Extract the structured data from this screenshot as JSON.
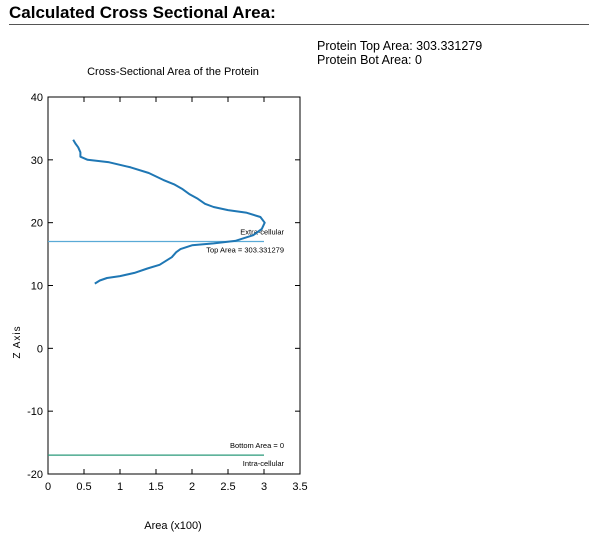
{
  "page": {
    "heading": "Calculated Cross Sectional Area:",
    "stats": {
      "top_area": "Protein Top Area: 303.331279",
      "bot_area": "Protein Bot Area: 0"
    }
  },
  "chart_data": {
    "type": "line",
    "title": "Cross-Sectional Area of the Protein",
    "xlabel": "Area (x100)",
    "ylabel": "Z Axis",
    "xlim": [
      0,
      3.5
    ],
    "ylim": [
      -20,
      40
    ],
    "xticks": [
      0,
      0.5,
      1,
      1.5,
      2,
      2.5,
      3,
      3.5
    ],
    "xtick_labels": [
      "0",
      "0.5",
      "1",
      "1.5",
      "2",
      "2.5",
      "3",
      "3.5"
    ],
    "yticks": [
      -20,
      -10,
      0,
      10,
      20,
      30,
      40
    ],
    "ytick_labels": [
      "-20",
      "-10",
      "0",
      "10",
      "20",
      "30",
      "40"
    ],
    "grid": false,
    "series": [
      {
        "color": "#1f77b4",
        "x": [
          0.65,
          0.72,
          0.82,
          1.0,
          1.2,
          1.38,
          1.55,
          1.72,
          1.78,
          1.84,
          2.0,
          2.3,
          2.6,
          2.85,
          2.97,
          3.01,
          2.95,
          2.75,
          2.5,
          2.3,
          2.18,
          2.08,
          1.97,
          1.86,
          1.75,
          1.6,
          1.4,
          1.15,
          0.85,
          0.55,
          0.45,
          0.45,
          0.42,
          0.38,
          0.35
        ],
        "y": [
          10.3,
          10.8,
          11.2,
          11.5,
          12.0,
          12.7,
          13.3,
          14.5,
          15.3,
          15.8,
          16.4,
          16.7,
          17.1,
          18.0,
          19.0,
          20.0,
          20.9,
          21.6,
          22.0,
          22.5,
          23.0,
          23.8,
          24.5,
          25.4,
          26.1,
          26.8,
          27.9,
          28.8,
          29.6,
          30.0,
          30.5,
          31.2,
          32.0,
          32.6,
          33.2
        ]
      }
    ],
    "reference_lines": [
      {
        "y": 17,
        "x_from": 0,
        "x_to": 3.0,
        "color": "#5aaad6",
        "labels": [
          "Extra-cellular",
          "Top Area = 303.331279"
        ]
      },
      {
        "y": -17,
        "x_from": 0,
        "x_to": 3.0,
        "color": "#2a9a7a",
        "labels": [
          "Bottom Area = 0",
          "Intra-cellular"
        ]
      }
    ]
  }
}
